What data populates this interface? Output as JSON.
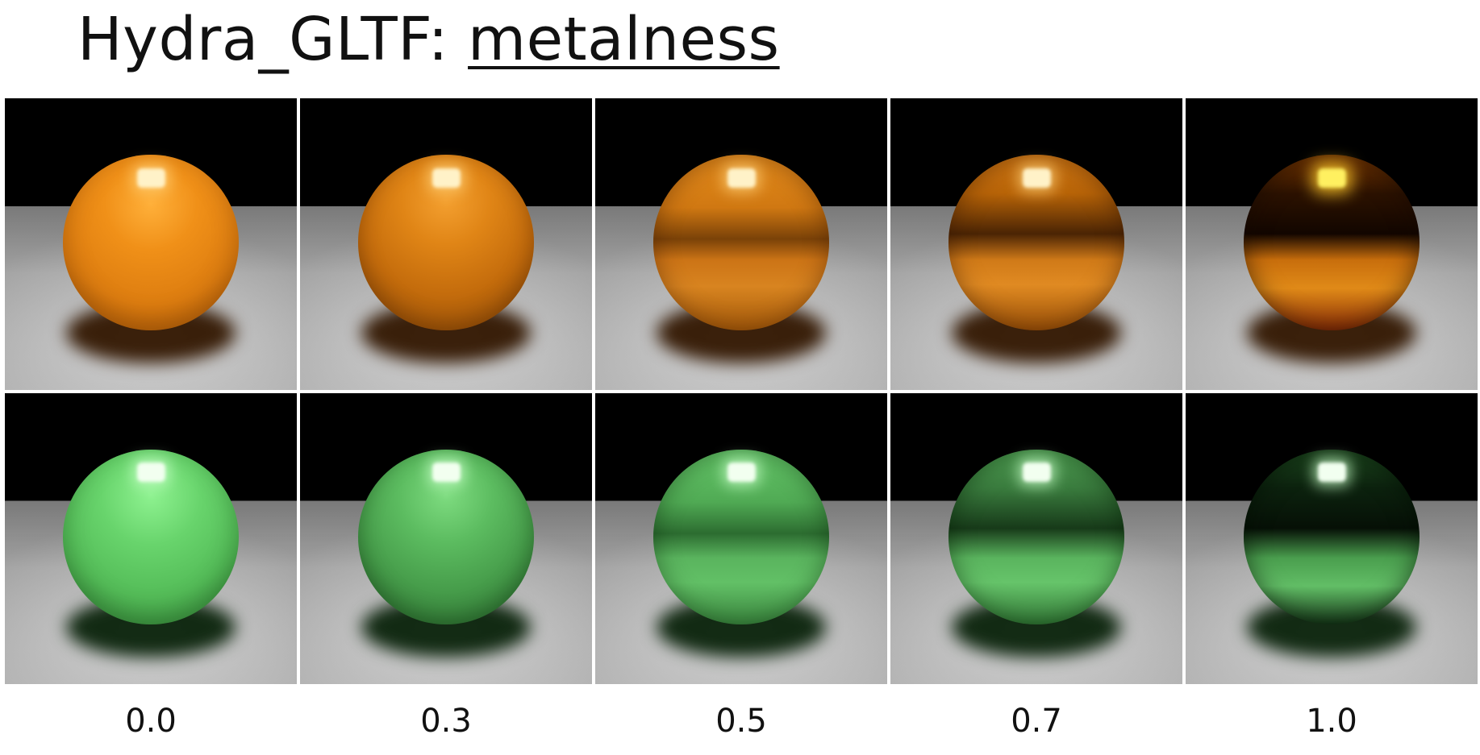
{
  "title": {
    "prefix": "Hydra_GLTF: ",
    "underlined": "metalness"
  },
  "rows": [
    {
      "name": "orange",
      "base_color": "#f09018"
    },
    {
      "name": "green",
      "base_color": "#68d46c"
    }
  ],
  "metalness_values": [
    "0.0",
    "0.3",
    "0.5",
    "0.7",
    "1.0"
  ]
}
